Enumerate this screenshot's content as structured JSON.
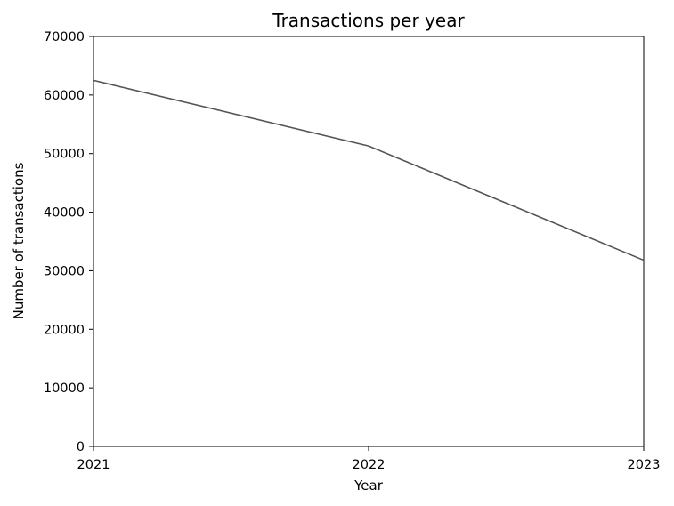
{
  "chart_data": {
    "type": "line",
    "title": "Transactions per year",
    "xlabel": "Year",
    "ylabel": "Number of transactions",
    "x": [
      "2021",
      "2022",
      "2023"
    ],
    "series": [
      {
        "values": [
          62500,
          51300,
          31800
        ]
      }
    ],
    "xlim": [
      2021,
      2023
    ],
    "ylim": [
      0,
      70000
    ],
    "yticks": [
      0,
      10000,
      20000,
      30000,
      40000,
      50000,
      60000,
      70000
    ],
    "xticks": [
      "2021",
      "2022",
      "2023"
    ],
    "grid": false,
    "line_color": "#555555"
  }
}
